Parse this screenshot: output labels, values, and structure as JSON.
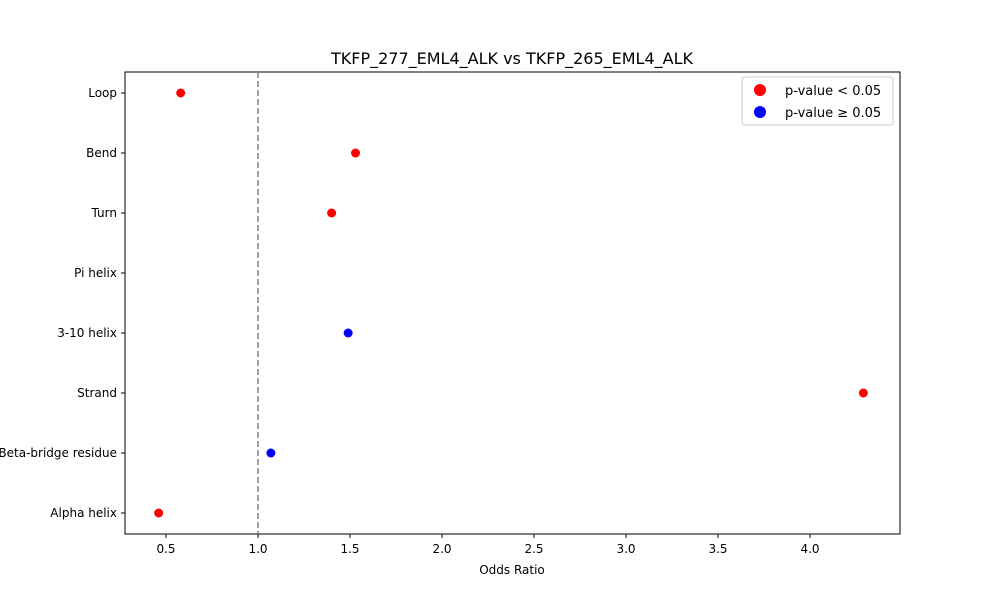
{
  "chart_data": {
    "type": "scatter",
    "title": "TKFP_277_EML4_ALK vs TKFP_265_EML4_ALK",
    "xlabel": "Odds Ratio",
    "ylabel": "",
    "xlim": [
      0.28,
      4.47
    ],
    "xticks": [
      "0.5",
      "1.0",
      "1.5",
      "2.0",
      "2.5",
      "3.0",
      "3.5",
      "4.0"
    ],
    "categories": [
      "Loop",
      "Bend",
      "Turn",
      "Pi helix",
      "3-10 helix",
      "Strand",
      "Beta-bridge residue",
      "Alpha helix"
    ],
    "points": [
      {
        "category": "Loop",
        "odds_ratio": 0.58,
        "significant": true
      },
      {
        "category": "Bend",
        "odds_ratio": 1.53,
        "significant": true
      },
      {
        "category": "Turn",
        "odds_ratio": 1.4,
        "significant": true
      },
      {
        "category": "Pi helix",
        "odds_ratio": null,
        "significant": null
      },
      {
        "category": "3-10 helix",
        "odds_ratio": 1.49,
        "significant": false
      },
      {
        "category": "Strand",
        "odds_ratio": 4.29,
        "significant": true
      },
      {
        "category": "Beta-bridge residue",
        "odds_ratio": 1.07,
        "significant": false
      },
      {
        "category": "Alpha helix",
        "odds_ratio": 0.46,
        "significant": true
      }
    ],
    "reference_line": {
      "x": 1.0,
      "style": "dashed",
      "color": "#808080"
    },
    "legend": {
      "position": "upper right",
      "entries": [
        {
          "label": "p-value < 0.05",
          "color": "#ff0000"
        },
        {
          "label": "p-value ≥ 0.05",
          "color": "#0000ff"
        }
      ]
    },
    "grid": false
  }
}
